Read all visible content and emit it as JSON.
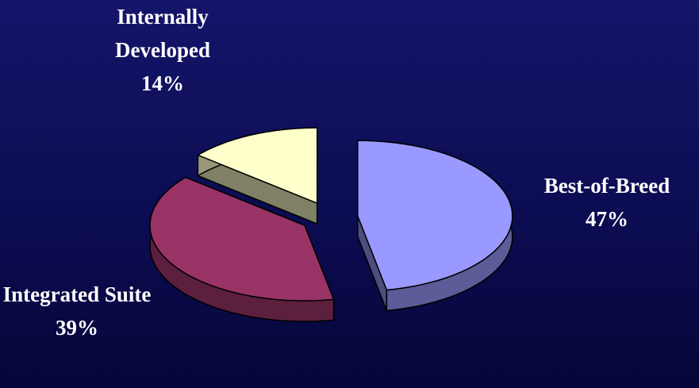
{
  "chart_data": {
    "type": "pie3d",
    "categories": [
      "Best-of-Breed",
      "Integrated Suite",
      "Internally Developed"
    ],
    "values": [
      47,
      39,
      14
    ],
    "value_labels": [
      "47%",
      "39%",
      "14%"
    ],
    "colors": [
      "#9999ff",
      "#993366",
      "#ffffcc"
    ],
    "exploded": true
  }
}
